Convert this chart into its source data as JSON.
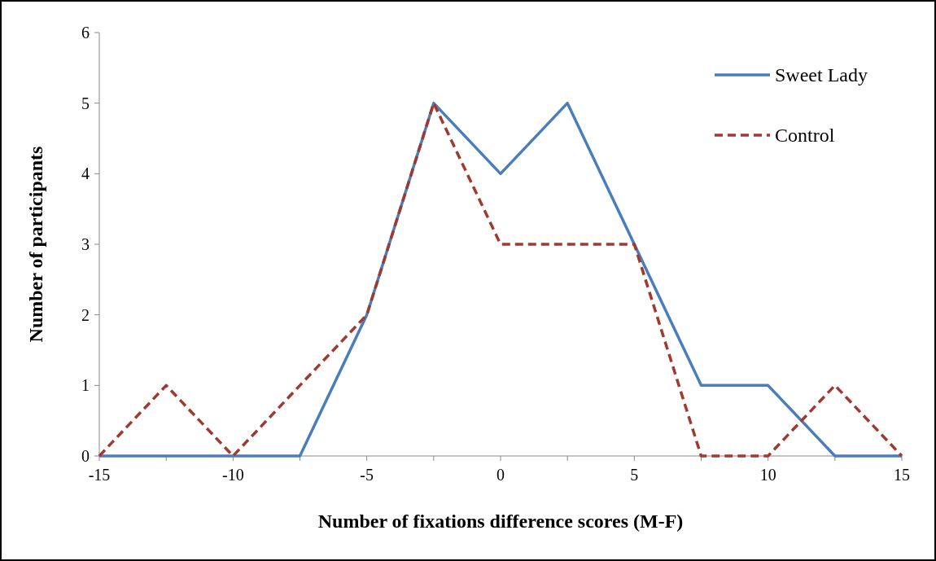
{
  "chart_data": {
    "type": "line",
    "xlabel": "Number of fixations difference scores (M-F)",
    "ylabel": "Number of participants",
    "x": [
      -15,
      -12.5,
      -10,
      -7.5,
      -5,
      -2.5,
      0,
      2.5,
      5,
      7.5,
      10,
      12.5,
      15
    ],
    "series": [
      {
        "name": "Sweet Lady",
        "color": "#4a7ebb",
        "line_style": "solid",
        "values": [
          0,
          0,
          0,
          0,
          2,
          5,
          4,
          5,
          3,
          1,
          1,
          0,
          0
        ]
      },
      {
        "name": "Control",
        "color": "#a0392f",
        "line_style": "dashed",
        "values": [
          0,
          1,
          0,
          1,
          2,
          5,
          3,
          3,
          3,
          0,
          0,
          1,
          0
        ]
      }
    ],
    "xlim": [
      -15,
      15
    ],
    "xticks": [
      -15,
      {
        "value": -12.5,
        "label": null
      },
      -10,
      {
        "value": -7.5,
        "label": null
      },
      -5,
      {
        "value": -2.5,
        "label": null
      },
      0,
      {
        "value": 2.5,
        "label": null
      },
      5,
      {
        "value": 7.5,
        "label": null
      },
      10,
      {
        "value": 12.5,
        "label": null
      },
      15
    ],
    "ylim": [
      0,
      6
    ],
    "yticks": [
      0,
      1,
      2,
      3,
      4,
      5,
      6
    ],
    "grid": false,
    "legend": "top right",
    "marker": "none"
  }
}
